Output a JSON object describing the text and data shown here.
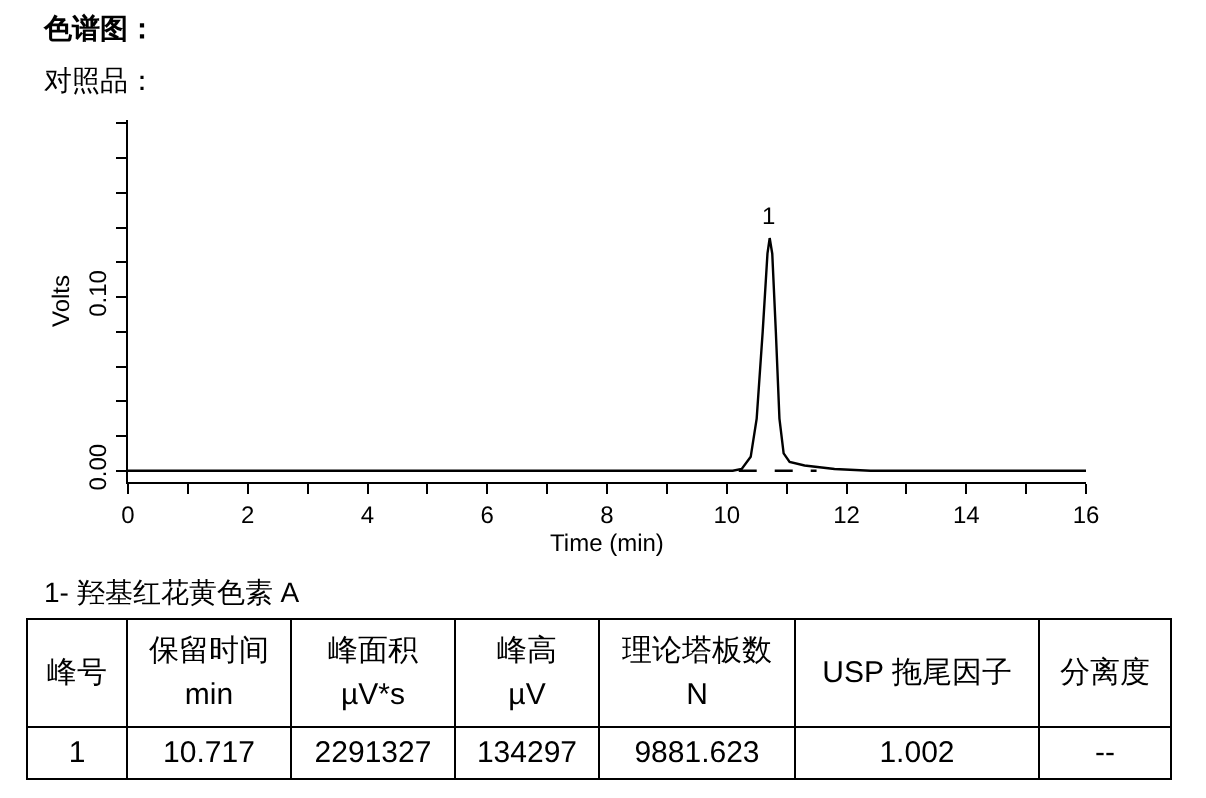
{
  "chart_data": [
    {
      "type": "line",
      "title": "色谱图：",
      "subtitle": "对照品：",
      "xlabel": "Time (min)",
      "ylabel": "Volts",
      "xlim": [
        0,
        16
      ],
      "xticks": [
        0,
        {
          "value": 1,
          "label": null
        },
        2,
        {
          "value": 3,
          "label": null
        },
        4,
        {
          "value": 5,
          "label": null
        },
        6,
        {
          "value": 7,
          "label": null
        },
        8,
        {
          "value": 9,
          "label": null
        },
        10,
        {
          "value": 11,
          "label": null
        },
        12,
        {
          "value": 13,
          "label": null
        },
        14,
        {
          "value": 15,
          "label": null
        },
        16
      ],
      "ylim": [
        -0.0065,
        0.202
      ],
      "yticks": [
        {
          "value": 0,
          "label": "0.00"
        },
        {
          "value": 0.02,
          "label": null
        },
        {
          "value": 0.04,
          "label": null
        },
        {
          "value": 0.06,
          "label": null
        },
        {
          "value": 0.08,
          "label": null
        },
        {
          "value": 0.1,
          "label": "0.10"
        },
        {
          "value": 0.12,
          "label": null
        },
        {
          "value": 0.14,
          "label": null
        },
        {
          "value": 0.16,
          "label": null
        },
        {
          "value": 0.18,
          "label": null
        },
        {
          "value": 0.2,
          "label": null
        }
      ],
      "series": [
        {
          "color": "#000000",
          "x": [
            0,
            10.1,
            10.25,
            10.4,
            10.5,
            10.6,
            10.68,
            10.717,
            10.76,
            10.82,
            10.88,
            10.95,
            11.05,
            11.3,
            11.8,
            12.4,
            16
          ],
          "values": [
            0,
            0,
            0.001,
            0.008,
            0.03,
            0.08,
            0.125,
            0.134,
            0.125,
            0.08,
            0.03,
            0.01,
            0.005,
            0.003,
            0.001,
            0,
            0
          ]
        },
        {
          "color": "#000000",
          "line_style": "dashed",
          "x": [
            10.2,
            11.5
          ],
          "values": [
            0,
            0
          ]
        }
      ],
      "annotations": [
        {
          "text": "1",
          "x": 10.717,
          "y": 0.134
        }
      ]
    },
    {
      "type": "other",
      "annotations": [
        "1-  羟基红花黄色素 A",
        "峰号",
        "保留时间\nmin",
        "峰面积\nµV*s",
        "峰高\nµV",
        "理论塔板数\nN",
        "USP 拖尾因子",
        "分离度",
        "1",
        "10.717",
        "2291327",
        "134297",
        "9881.623",
        "1.002",
        "--"
      ]
    }
  ]
}
